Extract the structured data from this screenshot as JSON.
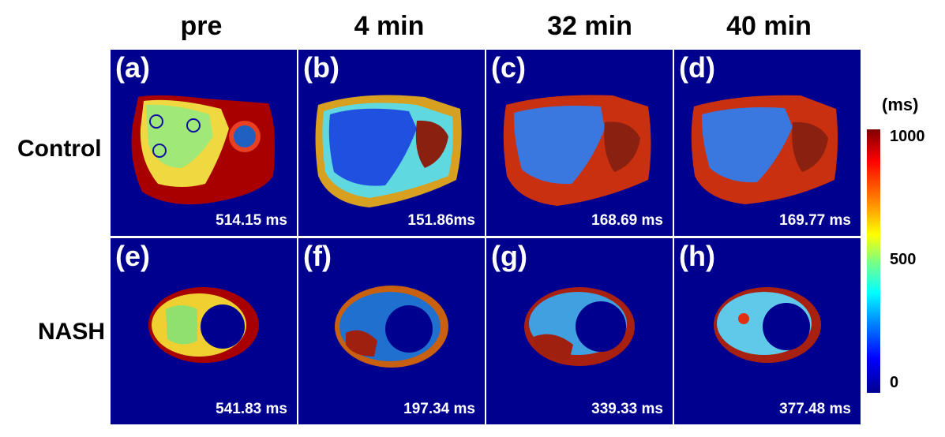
{
  "columns": [
    "pre",
    "4 min",
    "32 min",
    "40 min"
  ],
  "rows": [
    "Control",
    "NASH"
  ],
  "panels": [
    {
      "label": "(a)",
      "value": "514.15 ms"
    },
    {
      "label": "(b)",
      "value": "151.86ms"
    },
    {
      "label": "(c)",
      "value": "168.69 ms"
    },
    {
      "label": "(d)",
      "value": "169.77 ms"
    },
    {
      "label": "(e)",
      "value": "541.83 ms"
    },
    {
      "label": "(f)",
      "value": "197.34 ms"
    },
    {
      "label": "(g)",
      "value": "339.33 ms"
    },
    {
      "label": "(h)",
      "value": "377.48 ms"
    }
  ],
  "colorbar": {
    "unit": "(ms)",
    "ticks": [
      "1000",
      "500",
      "0"
    ],
    "colors": {
      "background": "#00008f",
      "high": "#7f0000",
      "mid": "#80ff80",
      "low": "#0000ff"
    }
  }
}
